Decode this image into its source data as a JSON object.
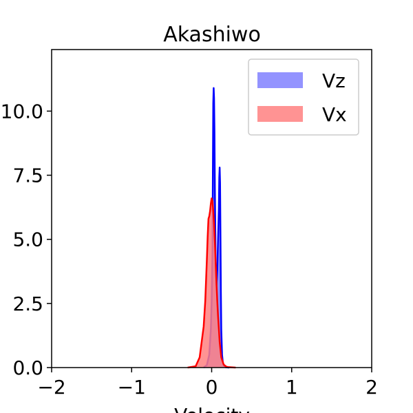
{
  "chart_data": {
    "type": "area",
    "title": "Akashiwo",
    "xlabel": "Velocity",
    "ylabel": "",
    "xlim": [
      -2,
      2
    ],
    "ylim": [
      0,
      12.4
    ],
    "xticks": [
      -2,
      -1,
      0,
      1,
      2
    ],
    "xtick_labels": [
      "−2",
      "−1",
      "0",
      "1",
      "2"
    ],
    "yticks": [
      0,
      2.5,
      5,
      7.5,
      10
    ],
    "ytick_labels": [
      "0.0",
      "2.5",
      "5.0",
      "7.5",
      "10.0"
    ],
    "grid": false,
    "legend_position": "top-right",
    "series": [
      {
        "name": "Vz",
        "color": "#0000ff",
        "fill_color": "#8080ff",
        "x": [
          -0.1,
          -0.06,
          -0.03,
          -0.01,
          0.0,
          0.01,
          0.015,
          0.02,
          0.025,
          0.03,
          0.035,
          0.04,
          0.05,
          0.06,
          0.07,
          0.08,
          0.09,
          0.095,
          0.1,
          0.105,
          0.11,
          0.115,
          0.12,
          0.13,
          0.14,
          0.15,
          0.16,
          0.18,
          0.22
        ],
        "y": [
          0,
          0.1,
          0.5,
          1.5,
          2.6,
          4.5,
          7.5,
          10.3,
          10.9,
          10.5,
          9.2,
          7.0,
          4.0,
          3.2,
          3.8,
          5.0,
          6.2,
          7.4,
          7.8,
          7.2,
          5.2,
          3.0,
          1.5,
          0.5,
          0.2,
          0.08,
          0.03,
          0.01,
          0
        ]
      },
      {
        "name": "Vx",
        "color": "#ff0000",
        "fill_color": "#ff8080",
        "x": [
          -0.3,
          -0.2,
          -0.15,
          -0.1,
          -0.08,
          -0.06,
          -0.05,
          -0.04,
          -0.03,
          -0.02,
          -0.01,
          0.0,
          0.01,
          0.02,
          0.03,
          0.04,
          0.05,
          0.06,
          0.07,
          0.08,
          0.1,
          0.12,
          0.15,
          0.18,
          0.2,
          0.25,
          0.3
        ],
        "y": [
          0,
          0.05,
          0.4,
          1.6,
          2.6,
          4.2,
          5.1,
          5.8,
          5.9,
          6.1,
          6.4,
          6.6,
          6.5,
          6.1,
          5.6,
          4.9,
          4.1,
          3.3,
          2.6,
          2.0,
          1.0,
          0.4,
          0.12,
          0.04,
          0.02,
          0.01,
          0
        ]
      }
    ]
  }
}
